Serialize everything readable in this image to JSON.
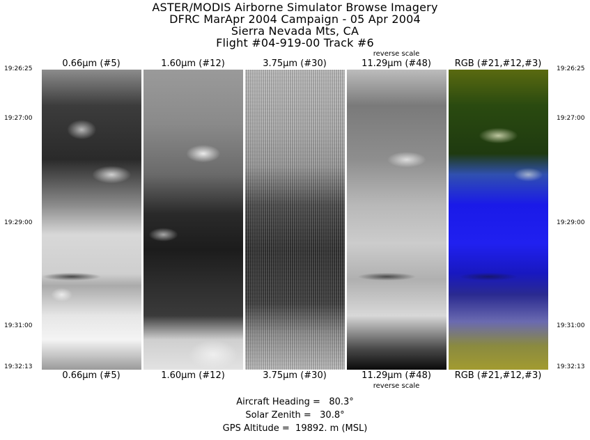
{
  "header": {
    "line1": "ASTER/MODIS Airborne Simulator Browse Imagery",
    "line2": "DFRC MarApr 2004 Campaign - 05 Apr 2004",
    "line3": "Sierra Nevada Mts, CA",
    "line4": "Flight #04-919-00 Track #6"
  },
  "times": {
    "left": [
      "19:26:25",
      "19:27:00",
      "19:29:00",
      "19:31:00",
      "19:32:13"
    ],
    "right": [
      "19:26:25",
      "19:27:00",
      "19:29:00",
      "19:31:00",
      "19:32:13"
    ]
  },
  "panels": [
    {
      "top_label": "0.66μm (#5)",
      "bottom_label": "0.66μm (#5)",
      "icon": "grayscale-band-image"
    },
    {
      "top_label": "1.60μm (#12)",
      "bottom_label": "1.60μm (#12)",
      "icon": "grayscale-band-image"
    },
    {
      "top_label": "3.75μm (#30)",
      "bottom_label": "3.75μm (#30)",
      "icon": "grayscale-band-image"
    },
    {
      "top_label": "11.29μm (#48)",
      "bottom_label": "11.29μm (#48)",
      "reverse_top": "reverse scale",
      "reverse_bottom": "reverse scale",
      "icon": "grayscale-band-image"
    },
    {
      "top_label": "RGB (#21,#12,#3)",
      "bottom_label": "RGB (#21,#12,#3)",
      "icon": "rgb-composite-image"
    }
  ],
  "footer": {
    "heading": "Aircraft Heading =   80.3°",
    "zenith": "Solar Zenith =   30.8°",
    "altitude": "GPS Altitude =  19892. m (MSL)"
  }
}
